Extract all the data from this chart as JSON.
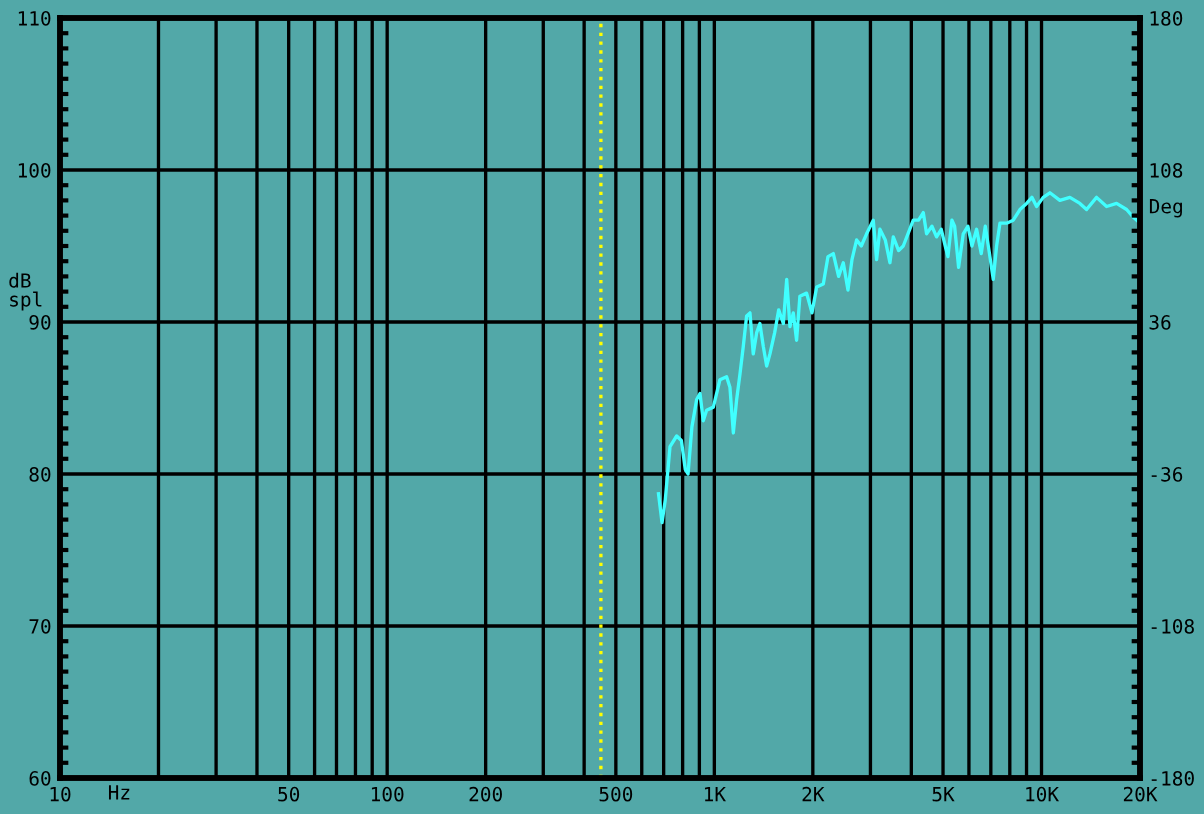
{
  "chart_data": {
    "type": "line",
    "xlabel": "Hz",
    "ylabel": "dB\nspl",
    "y2label": "Deg",
    "log": "x",
    "xlim": [
      10,
      20000
    ],
    "xticks": [
      10,
      {
        "value": 20,
        "label": null
      },
      {
        "value": 30,
        "label": null
      },
      {
        "value": 40,
        "label": null
      },
      50,
      {
        "value": 60,
        "label": null
      },
      {
        "value": 70,
        "label": null
      },
      {
        "value": 80,
        "label": null
      },
      {
        "value": 90,
        "label": null
      },
      100,
      200,
      {
        "value": 300,
        "label": null
      },
      {
        "value": 400,
        "label": null
      },
      500,
      {
        "value": 600,
        "label": null
      },
      {
        "value": 700,
        "label": null
      },
      {
        "value": 800,
        "label": null
      },
      {
        "value": 900,
        "label": null
      },
      {
        "value": 1000,
        "label": "1K"
      },
      {
        "value": 2000,
        "label": "2K"
      },
      {
        "value": 3000,
        "label": null
      },
      {
        "value": 4000,
        "label": null
      },
      {
        "value": 5000,
        "label": "5K"
      },
      {
        "value": 6000,
        "label": null
      },
      {
        "value": 7000,
        "label": null
      },
      {
        "value": 8000,
        "label": null
      },
      {
        "value": 9000,
        "label": null
      },
      {
        "value": 10000,
        "label": "10K"
      },
      {
        "value": 20000,
        "label": "20K"
      }
    ],
    "ylim": [
      60,
      110
    ],
    "yticks": [
      60,
      70,
      80,
      90,
      100,
      110
    ],
    "y2lim": [
      -180,
      180
    ],
    "y2ticks": [
      -180,
      -108,
      -36,
      36,
      108,
      180
    ],
    "grid": true,
    "marker": "none",
    "line_style": "solid",
    "ref_lines": [
      {
        "axis": "x",
        "value": 450,
        "color": "#ffff00",
        "line_style": "dotted"
      }
    ],
    "series": [
      {
        "color": "#40ffff",
        "x": [
          675,
          692,
          708,
          732,
          767,
          793,
          815,
          831,
          854,
          883,
          904,
          925,
          947,
          993,
          1040,
          1090,
          1116,
          1143,
          1170,
          1198,
          1226,
          1255,
          1285,
          1315,
          1347,
          1378,
          1411,
          1445,
          1479,
          1529,
          1573,
          1625,
          1664,
          1703,
          1743,
          1784,
          1826,
          1914,
          1988,
          2055,
          2153,
          2225,
          2310,
          2398,
          2478,
          2561,
          2634,
          2722,
          2813,
          2920,
          3060,
          3133,
          3207,
          3330,
          3441,
          3523,
          3658,
          3780,
          3907,
          4055,
          4210,
          4351,
          4454,
          4624,
          4778,
          4938,
          5078,
          5176,
          5323,
          5425,
          5579,
          5765,
          5958,
          6128,
          6333,
          6544,
          6732,
          6956,
          7121,
          7290,
          7464,
          7822,
          8197,
          8590,
          9002,
          9346,
          9660,
          10120,
          10610,
          11380,
          12210,
          13100,
          13730,
          14730,
          15810,
          16960,
          18200,
          19070,
          20000
        ],
        "values": [
          78.7,
          76.8,
          78.3,
          81.8,
          82.5,
          82.2,
          80.3,
          80.0,
          83.1,
          84.9,
          85.3,
          83.5,
          84.2,
          84.4,
          86.2,
          86.4,
          85.7,
          82.7,
          84.9,
          86.6,
          88.4,
          90.4,
          90.6,
          87.9,
          89.3,
          89.9,
          88.4,
          87.1,
          87.9,
          89.3,
          90.8,
          89.9,
          92.8,
          89.7,
          90.6,
          88.8,
          91.7,
          91.9,
          90.6,
          92.3,
          92.5,
          94.3,
          94.5,
          93.0,
          93.9,
          92.1,
          94.1,
          95.4,
          95.0,
          95.8,
          96.7,
          94.1,
          96.1,
          95.4,
          93.9,
          95.6,
          94.7,
          95.0,
          95.8,
          96.7,
          96.7,
          97.2,
          95.8,
          96.3,
          95.6,
          96.1,
          95.0,
          94.3,
          96.7,
          96.3,
          93.6,
          95.8,
          96.3,
          95.0,
          96.1,
          94.5,
          96.3,
          94.3,
          92.8,
          95.0,
          96.5,
          96.5,
          96.7,
          97.4,
          97.8,
          98.2,
          97.6,
          98.2,
          98.5,
          98.0,
          98.2,
          97.8,
          97.4,
          98.2,
          97.6,
          97.8,
          97.4,
          96.9,
          96.5
        ]
      }
    ]
  }
}
